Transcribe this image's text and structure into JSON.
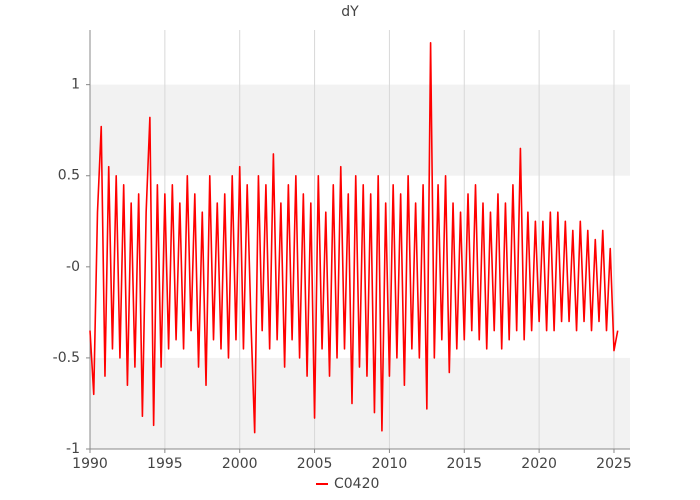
{
  "chart_data": {
    "type": "line",
    "title": "dY",
    "x": [
      1990,
      1990.25,
      1990.5,
      1990.75,
      1991,
      1991.25,
      1991.5,
      1991.75,
      1992,
      1992.25,
      1992.5,
      1992.75,
      1993,
      1993.25,
      1993.5,
      1993.75,
      1994,
      1994.25,
      1994.5,
      1994.75,
      1995,
      1995.25,
      1995.5,
      1995.75,
      1996,
      1996.25,
      1996.5,
      1996.75,
      1997,
      1997.25,
      1997.5,
      1997.75,
      1998,
      1998.25,
      1998.5,
      1998.75,
      1999,
      1999.25,
      1999.5,
      1999.75,
      2000,
      2000.25,
      2000.5,
      2000.75,
      2001,
      2001.25,
      2001.5,
      2001.75,
      2002,
      2002.25,
      2002.5,
      2002.75,
      2003,
      2003.25,
      2003.5,
      2003.75,
      2004,
      2004.25,
      2004.5,
      2004.75,
      2005,
      2005.25,
      2005.5,
      2005.75,
      2006,
      2006.25,
      2006.5,
      2006.75,
      2007,
      2007.25,
      2007.5,
      2007.75,
      2008,
      2008.25,
      2008.5,
      2008.75,
      2009,
      2009.25,
      2009.5,
      2009.75,
      2010,
      2010.25,
      2010.5,
      2010.75,
      2011,
      2011.25,
      2011.5,
      2011.75,
      2012,
      2012.25,
      2012.5,
      2012.75,
      2013,
      2013.25,
      2013.5,
      2013.75,
      2014,
      2014.25,
      2014.5,
      2014.75,
      2015,
      2015.25,
      2015.5,
      2015.75,
      2016,
      2016.25,
      2016.5,
      2016.75,
      2017,
      2017.25,
      2017.5,
      2017.75,
      2018,
      2018.25,
      2018.5,
      2018.75,
      2019,
      2019.25,
      2019.5,
      2019.75,
      2020,
      2020.25,
      2020.5,
      2020.75,
      2021,
      2021.25,
      2021.5,
      2021.75,
      2022,
      2022.25,
      2022.5,
      2022.75,
      2023,
      2023.25,
      2023.5,
      2023.75,
      2024,
      2024.25,
      2024.5,
      2024.75,
      2025,
      2025.25
    ],
    "series": [
      {
        "name": "C0420",
        "color": "#ff0000",
        "values": [
          -0.35,
          -0.7,
          0.3,
          0.77,
          -0.6,
          0.55,
          -0.45,
          0.5,
          -0.5,
          0.45,
          -0.65,
          0.35,
          -0.55,
          0.4,
          -0.82,
          0.3,
          0.82,
          -0.87,
          0.45,
          -0.55,
          0.4,
          -0.45,
          0.45,
          -0.4,
          0.35,
          -0.45,
          0.5,
          -0.35,
          0.4,
          -0.55,
          0.3,
          -0.65,
          0.5,
          -0.4,
          0.35,
          -0.45,
          0.4,
          -0.5,
          0.5,
          -0.4,
          0.55,
          -0.45,
          0.45,
          -0.3,
          -0.91,
          0.5,
          -0.35,
          0.45,
          -0.45,
          0.62,
          -0.4,
          0.35,
          -0.55,
          0.45,
          -0.4,
          0.5,
          -0.5,
          0.4,
          -0.6,
          0.35,
          -0.83,
          0.5,
          -0.45,
          0.3,
          -0.6,
          0.45,
          -0.5,
          0.55,
          -0.45,
          0.4,
          -0.75,
          0.5,
          -0.55,
          0.45,
          -0.6,
          0.4,
          -0.8,
          0.5,
          -0.9,
          0.35,
          -0.6,
          0.45,
          -0.5,
          0.4,
          -0.65,
          0.5,
          -0.45,
          0.35,
          -0.5,
          0.45,
          -0.78,
          1.23,
          -0.5,
          0.45,
          -0.4,
          0.5,
          -0.58,
          0.35,
          -0.45,
          0.3,
          -0.4,
          0.4,
          -0.35,
          0.45,
          -0.4,
          0.35,
          -0.45,
          0.3,
          -0.35,
          0.4,
          -0.45,
          0.35,
          -0.4,
          0.45,
          -0.35,
          0.65,
          -0.4,
          0.3,
          -0.35,
          0.25,
          -0.3,
          0.25,
          -0.35,
          0.3,
          -0.35,
          0.3,
          -0.3,
          0.25,
          -0.3,
          0.2,
          -0.35,
          0.25,
          -0.3,
          0.2,
          -0.35,
          0.15,
          -0.3,
          0.2,
          -0.35,
          0.1,
          -0.46,
          -0.35
        ]
      }
    ],
    "xlim": [
      1990,
      2026.07
    ],
    "xticks": [
      1990,
      1995,
      2000,
      2005,
      2010,
      2015,
      2020,
      2025
    ],
    "ylim": [
      -1,
      1.3
    ],
    "yticks": [
      -1,
      -0.5,
      {
        "value": 0,
        "label": "-0"
      },
      0.5,
      1
    ],
    "grid": true
  }
}
